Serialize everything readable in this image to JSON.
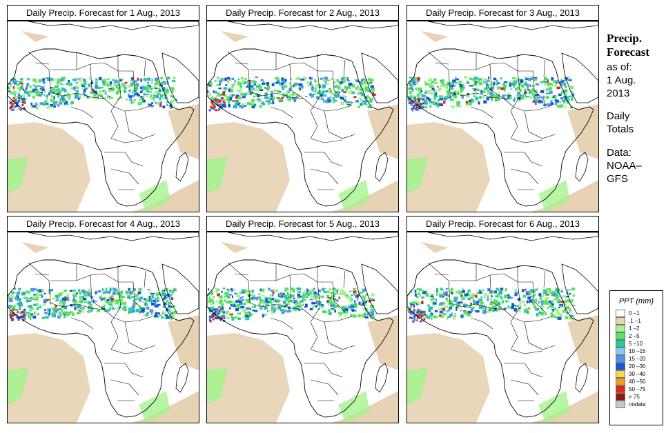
{
  "panels": [
    {
      "title_prefix": "Daily Precip. Forecast for",
      "date": "1 Aug., 2013",
      "intensity": 1.0
    },
    {
      "title_prefix": "Daily Precip. Forecast for",
      "date": "2 Aug., 2013",
      "intensity": 0.95
    },
    {
      "title_prefix": "Daily Precip. Forecast for",
      "date": "3 Aug., 2013",
      "intensity": 0.9
    },
    {
      "title_prefix": "Daily Precip. Forecast for",
      "date": "4 Aug., 2013",
      "intensity": 0.85
    },
    {
      "title_prefix": "Daily Precip. Forecast for",
      "date": "5 Aug., 2013",
      "intensity": 0.9
    },
    {
      "title_prefix": "Daily Precip. Forecast for",
      "date": "6 Aug., 2013",
      "intensity": 1.0
    }
  ],
  "sidebar": {
    "heading1": "Precip.",
    "heading2": "Forecast",
    "as_of_label": "as of:",
    "as_of_date1": "1 Aug.",
    "as_of_date2": "2013",
    "totals1": "Daily",
    "totals2": "Totals",
    "data1": "Data:",
    "data2": "NOAA–",
    "data3": "GFS"
  },
  "legend": {
    "title": "PPT (mm)",
    "items": [
      {
        "label": "0 –1",
        "color": "#ffffff"
      },
      {
        "label": ".1 –1",
        "color": "#e8d2b4"
      },
      {
        "label": "1 –2",
        "color": "#a6f28e"
      },
      {
        "label": "2 –5",
        "color": "#57e35a"
      },
      {
        "label": "5 –10",
        "color": "#28c8a0"
      },
      {
        "label": "10 –15",
        "color": "#8ec8f5"
      },
      {
        "label": "15 –20",
        "color": "#4a96ee"
      },
      {
        "label": "20 –30",
        "color": "#1654d8"
      },
      {
        "label": "30 –40",
        "color": "#f5d94a"
      },
      {
        "label": "40 –50",
        "color": "#f59a22"
      },
      {
        "label": "50 –75",
        "color": "#e02810"
      },
      {
        "label": "> 75",
        "color": "#8c1a10"
      },
      {
        "label": "nodata",
        "color": "#c8c8c8"
      }
    ]
  },
  "colors": {
    "dry": "#e8d2b4",
    "light": "#a6f28e",
    "moderate": "#57e35a",
    "medium": "#28c8a0",
    "heavy": "#4a96ee",
    "very_heavy": "#1654d8",
    "extreme": "#e02810",
    "outline": "#000000"
  }
}
